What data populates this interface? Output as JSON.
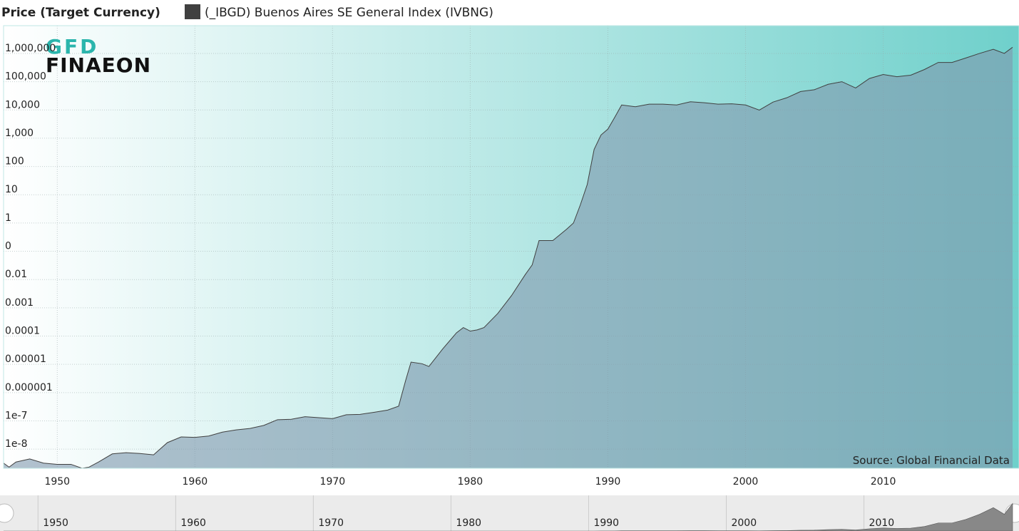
{
  "chart_data": {
    "type": "area",
    "title": "Price (Target Currency)",
    "log_scale": true,
    "grid": true,
    "source": "Source: Global Financial Data",
    "x": [
      1946.1,
      1946.5,
      1947,
      1948,
      1949,
      1950,
      1951,
      1951.8,
      1952.3,
      1953,
      1954,
      1955,
      1956,
      1957,
      1958,
      1959,
      1960,
      1961,
      1962,
      1963,
      1964,
      1965,
      1966,
      1967,
      1968,
      1969,
      1970,
      1971,
      1972,
      1973,
      1974,
      1974.8,
      1975.3,
      1975.7,
      1976.5,
      1977,
      1978,
      1979,
      1979.5,
      1980,
      1980.5,
      1981,
      1982,
      1983,
      1984,
      1984.5,
      1985,
      1986,
      1987,
      1987.5,
      1988,
      1988.5,
      1989,
      1989.5,
      1990,
      1990.5,
      1991,
      1992,
      1993,
      1994,
      1995,
      1996,
      1997,
      1998,
      1999,
      2000,
      2001,
      2002,
      2003,
      2004,
      2005,
      2006,
      2007,
      2008,
      2009,
      2010,
      2011,
      2012,
      2013,
      2014,
      2015,
      2016,
      2017,
      2018,
      2018.8,
      2019.4
    ],
    "series": [
      {
        "name": "(_IBGD) Buenos Aires SE General Index (IVBNG)",
        "color": "#404040",
        "values": [
          3.2e-09,
          2.3e-09,
          3.5e-09,
          4.5e-09,
          3.2e-09,
          2.9e-09,
          2.9e-09,
          2.1e-09,
          2.3e-09,
          3.5e-09,
          6.8e-09,
          7.5e-09,
          7e-09,
          6.3e-09,
          1.7e-08,
          2.7e-08,
          2.6e-08,
          2.9e-08,
          4e-08,
          4.8e-08,
          5.4e-08,
          6.9e-08,
          1.1e-07,
          1.14e-07,
          1.4e-07,
          1.3e-07,
          1.2e-07,
          1.65e-07,
          1.7e-07,
          2e-07,
          2.4e-07,
          3.3e-07,
          2.6e-06,
          1.2e-05,
          1.05e-05,
          8.4e-06,
          3.5e-05,
          0.00013,
          0.0002,
          0.00015,
          0.000165,
          0.0002,
          0.00063,
          0.0027,
          0.015,
          0.033,
          0.24,
          0.24,
          0.6,
          1,
          4.4,
          23,
          400,
          1300,
          2100,
          5500,
          15000,
          13000,
          16000,
          16000,
          15000,
          19500,
          18000,
          16000,
          16500,
          15000,
          9900,
          19000,
          27000,
          45000,
          52000,
          81000,
          100000,
          60000,
          130000,
          180000,
          150000,
          170000,
          270000,
          480000,
          480000,
          690000,
          1000000,
          1400000,
          1000000,
          1650000
        ]
      }
    ],
    "xlim": [
      1946.1,
      2019.4
    ],
    "xticks": [
      1950,
      1960,
      1970,
      1980,
      1990,
      2000,
      2010
    ],
    "ylim": [
      2.1e-09,
      9600000.0
    ],
    "yticks": [
      {
        "value": 1e-08,
        "label": "1e-8"
      },
      {
        "value": 1e-07,
        "label": "1e-7"
      },
      {
        "value": 1e-06,
        "label": "0.000001"
      },
      {
        "value": 1e-05,
        "label": "0.00001"
      },
      {
        "value": 0.0001,
        "label": "0.0001"
      },
      0.001,
      0.01,
      {
        "value": 0.1,
        "label": "0"
      },
      1,
      10,
      100,
      {
        "value": 1000,
        "label": "1,000"
      },
      {
        "value": 10000,
        "label": "10,000"
      },
      {
        "value": 100000,
        "label": "100,000"
      },
      {
        "value": 1000000,
        "label": "1,000,000"
      }
    ]
  },
  "logo": {
    "top": "GFD",
    "bottom": "FINAEON"
  }
}
